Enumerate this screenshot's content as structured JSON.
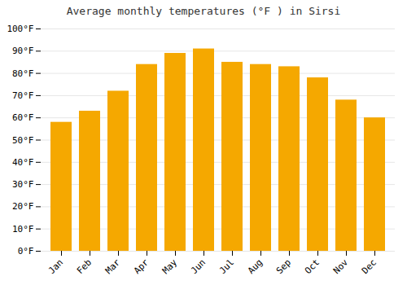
{
  "chart_data": {
    "type": "bar",
    "title": "Average monthly temperatures (°F ) in Sirsi",
    "categories": [
      "Jan",
      "Feb",
      "Mar",
      "Apr",
      "May",
      "Jun",
      "Jul",
      "Aug",
      "Sep",
      "Oct",
      "Nov",
      "Dec"
    ],
    "values": [
      58,
      63,
      72,
      84,
      89,
      91,
      85,
      84,
      83,
      78,
      68,
      60
    ],
    "color": "#F5A800",
    "ylim": [
      0,
      100
    ],
    "yticks": [
      {
        "value": 0,
        "label": "0°F"
      },
      {
        "value": 10,
        "label": "10°F"
      },
      {
        "value": 20,
        "label": "20°F"
      },
      {
        "value": 30,
        "label": "30°F"
      },
      {
        "value": 40,
        "label": "40°F"
      },
      {
        "value": 50,
        "label": "50°F"
      },
      {
        "value": 60,
        "label": "60°F"
      },
      {
        "value": 70,
        "label": "70°F"
      },
      {
        "value": 80,
        "label": "80°F"
      },
      {
        "value": 90,
        "label": "90°F"
      },
      {
        "value": 100,
        "label": "100°F"
      }
    ],
    "grid": true
  }
}
